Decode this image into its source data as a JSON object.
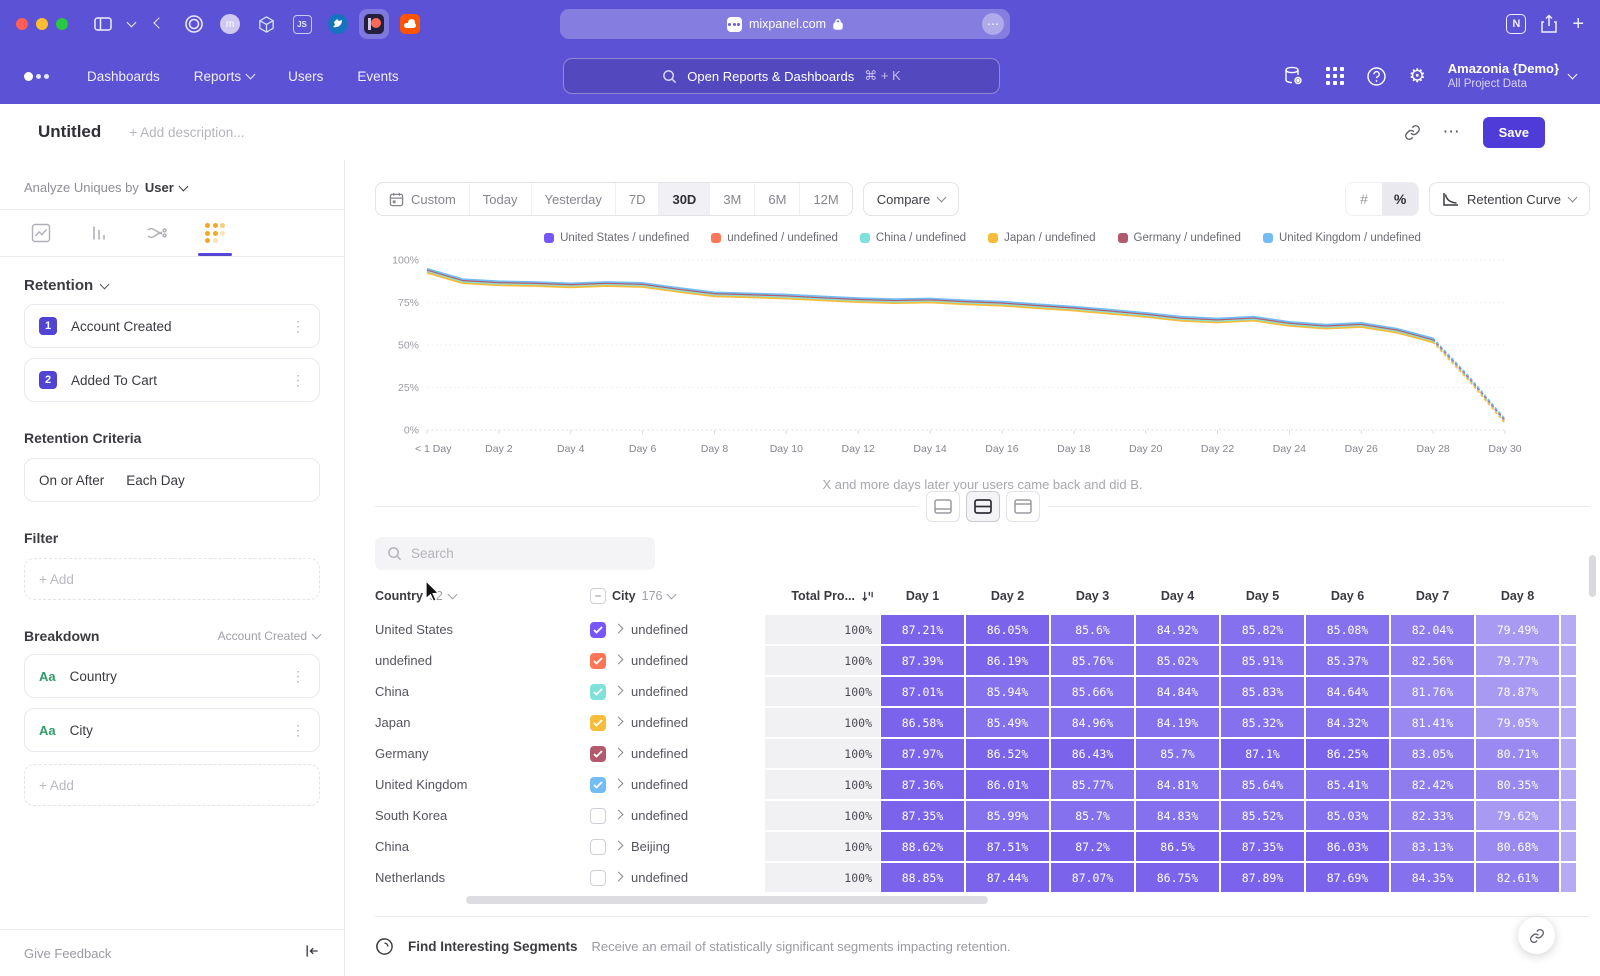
{
  "browser": {
    "url": "mixpanel.com",
    "pinned_tab_icons": [
      "target-icon",
      "m-avatar-icon",
      "cube-icon",
      "js-icon",
      "bird-icon",
      "patreon-icon",
      "soundcloud-icon"
    ],
    "right_icons": [
      "notion-icon",
      "share-icon",
      "new-tab-icon"
    ]
  },
  "nav": {
    "items": [
      "Dashboards",
      "Reports",
      "Users",
      "Events"
    ],
    "items_with_dropdown": [
      "Reports"
    ],
    "search_placeholder": "Open Reports & Dashboards",
    "search_shortcut": "⌘ + K",
    "right_icons": [
      "data-icon",
      "apps-grid-icon",
      "help-icon",
      "gear-icon"
    ],
    "project_name": "Amazonia {Demo}",
    "project_scope": "All Project Data"
  },
  "header": {
    "title": "Untitled",
    "description_placeholder": "+ Add description...",
    "save_label": "Save"
  },
  "sidebar": {
    "analyze_label": "Analyze Uniques by",
    "analyze_value": "User",
    "tabs": [
      "insights-icon",
      "funnels-icon",
      "flows-icon",
      "retention-icon"
    ],
    "active_tab": "retention-icon",
    "section_title": "Retention",
    "steps": [
      {
        "num": "1",
        "label": "Account Created"
      },
      {
        "num": "2",
        "label": "Added To Cart"
      }
    ],
    "criteria_title": "Retention Criteria",
    "criteria_value_1": "On or After",
    "criteria_value_2": "Each Day",
    "filter_title": "Filter",
    "filter_add": "+ Add",
    "breakdown_title": "Breakdown",
    "breakdown_scope": "Account Created",
    "breakdowns": [
      {
        "type": "Aa",
        "label": "Country"
      },
      {
        "type": "Aa",
        "label": "City"
      }
    ],
    "breakdown_add": "+ Add",
    "feedback": "Give Feedback"
  },
  "toolbar": {
    "ranges": [
      "Custom",
      "Today",
      "Yesterday",
      "7D",
      "30D",
      "3M",
      "6M",
      "12M"
    ],
    "active_range": "30D",
    "compare_label": "Compare",
    "number_format_options": [
      "#",
      "%"
    ],
    "active_number_format": "%",
    "chart_type_label": "Retention Curve"
  },
  "chart_data": {
    "type": "line",
    "title": "",
    "xlabel": "",
    "ylabel": "",
    "ylim": [
      0,
      100
    ],
    "y_ticks": [
      "0%",
      "25%",
      "50%",
      "75%",
      "100%"
    ],
    "x_labels": [
      "< 1 Day",
      "Day 2",
      "Day 4",
      "Day 6",
      "Day 8",
      "Day 10",
      "Day 12",
      "Day 14",
      "Day 16",
      "Day 18",
      "Day 20",
      "Day 22",
      "Day 24",
      "Day 26",
      "Day 28",
      "Day 30"
    ],
    "x_points": 31,
    "base_curve_pct": [
      93.5,
      87.3,
      86.1,
      85.7,
      84.9,
      85.7,
      85.1,
      82.2,
      79.6,
      79.0,
      78.3,
      77.2,
      76.2,
      75.6,
      76.0,
      74.9,
      74.1,
      72.6,
      71.2,
      69.4,
      67.5,
      65.2,
      64.2,
      65.3,
      62.2,
      60.6,
      61.6,
      58.2,
      52.5,
      30.0,
      5.0
    ],
    "dashed_from_index": 28,
    "legend_position": "top-center",
    "grid": true,
    "series": [
      {
        "name": "United States / undefined",
        "color": "#7856FF",
        "offset": 0
      },
      {
        "name": "undefined / undefined",
        "color": "#FF7557",
        "offset": 0.4
      },
      {
        "name": "China / undefined",
        "color": "#80E1D9",
        "offset": -0.3
      },
      {
        "name": "Japan / undefined",
        "color": "#F8BC3B",
        "offset": -1.0
      },
      {
        "name": "Germany / undefined",
        "color": "#B2596E",
        "offset": 0.8
      },
      {
        "name": "United Kingdom / undefined",
        "color": "#72BEF4",
        "offset": 1.4
      }
    ]
  },
  "caption": "X and more days later your users came back and did B.",
  "table": {
    "search_placeholder": "Search",
    "col_country": "Country",
    "country_count": "52",
    "col_city": "City",
    "city_count": "176",
    "col_total": "Total Pro...",
    "day_headers": [
      "Day 1",
      "Day 2",
      "Day 3",
      "Day 4",
      "Day 5",
      "Day 6",
      "Day 7",
      "Day 8"
    ],
    "rows": [
      {
        "country": "United States",
        "checked": true,
        "color": "#7856FF",
        "city": "undefined",
        "total": "100%",
        "days": [
          "87.21%",
          "86.05%",
          "85.6%",
          "84.92%",
          "85.82%",
          "85.08%",
          "82.04%",
          "79.49%"
        ]
      },
      {
        "country": "undefined",
        "checked": true,
        "color": "#FF7557",
        "city": "undefined",
        "total": "100%",
        "days": [
          "87.39%",
          "86.19%",
          "85.76%",
          "85.02%",
          "85.91%",
          "85.37%",
          "82.56%",
          "79.77%"
        ]
      },
      {
        "country": "China",
        "checked": true,
        "color": "#80E1D9",
        "city": "undefined",
        "total": "100%",
        "days": [
          "87.01%",
          "85.94%",
          "85.66%",
          "84.84%",
          "85.83%",
          "84.64%",
          "81.76%",
          "78.87%"
        ]
      },
      {
        "country": "Japan",
        "checked": true,
        "color": "#F8BC3B",
        "city": "undefined",
        "total": "100%",
        "days": [
          "86.58%",
          "85.49%",
          "84.96%",
          "84.19%",
          "85.32%",
          "84.32%",
          "81.41%",
          "79.05%"
        ]
      },
      {
        "country": "Germany",
        "checked": true,
        "color": "#B2596E",
        "city": "undefined",
        "total": "100%",
        "days": [
          "87.97%",
          "86.52%",
          "86.43%",
          "85.7%",
          "87.1%",
          "86.25%",
          "83.05%",
          "80.71%"
        ]
      },
      {
        "country": "United Kingdom",
        "checked": true,
        "color": "#72BEF4",
        "city": "undefined",
        "total": "100%",
        "days": [
          "87.36%",
          "86.01%",
          "85.77%",
          "84.81%",
          "85.64%",
          "85.41%",
          "82.42%",
          "80.35%"
        ]
      },
      {
        "country": "South Korea",
        "checked": false,
        "color": null,
        "city": "undefined",
        "total": "100%",
        "days": [
          "87.35%",
          "85.99%",
          "85.7%",
          "84.83%",
          "85.52%",
          "85.03%",
          "82.33%",
          "79.62%"
        ]
      },
      {
        "country": "China",
        "checked": false,
        "color": null,
        "city": "Beijing",
        "total": "100%",
        "days": [
          "88.62%",
          "87.51%",
          "87.2%",
          "86.5%",
          "87.35%",
          "86.03%",
          "83.13%",
          "80.68%"
        ]
      },
      {
        "country": "Netherlands",
        "checked": false,
        "color": null,
        "city": "undefined",
        "total": "100%",
        "days": [
          "88.85%",
          "87.44%",
          "87.07%",
          "86.75%",
          "87.89%",
          "87.69%",
          "84.35%",
          "82.61%"
        ]
      }
    ]
  },
  "footer": {
    "title": "Find Interesting Segments",
    "desc": "Receive an email of statistically significant segments impacting retention."
  }
}
